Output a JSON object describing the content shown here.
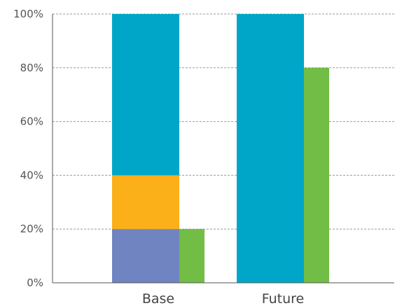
{
  "chart_data": {
    "type": "bar",
    "categories": [
      "Base",
      "Future"
    ],
    "y_ticks": [
      "0%",
      "20%",
      "40%",
      "60%",
      "80%",
      "100%"
    ],
    "ylim": [
      0,
      100
    ],
    "y_unit": "%",
    "grid": "horizontal-dashed",
    "legend": "none",
    "stacked_series": [
      {
        "color": "#6f84c0",
        "values": [
          20,
          0
        ]
      },
      {
        "color": "#fbaf19",
        "values": [
          20,
          0
        ]
      },
      {
        "color": "#00a6c8",
        "values": [
          60,
          100
        ]
      }
    ],
    "side_series": [
      {
        "color": "#72bd45",
        "values": [
          20,
          80
        ]
      }
    ]
  }
}
